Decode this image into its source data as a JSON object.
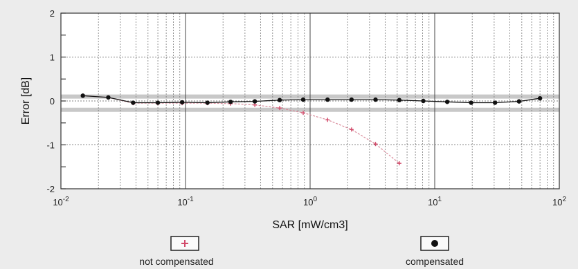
{
  "chart_data": {
    "type": "scatter",
    "title": "",
    "xlabel": "SAR [mW/cm3]",
    "ylabel": "Error [dB]",
    "xscale": "log",
    "xlim": [
      0.01,
      100
    ],
    "ylim": [
      -2,
      2
    ],
    "grid": true,
    "legend_position": "bottom",
    "x_ticks": [
      {
        "base": "10",
        "exp": "-2"
      },
      {
        "base": "10",
        "exp": "-1"
      },
      {
        "base": "10",
        "exp": "0"
      },
      {
        "base": "10",
        "exp": "1"
      },
      {
        "base": "10",
        "exp": "2"
      }
    ],
    "y_ticks": [
      "2",
      "1",
      "0",
      "-1",
      "-2"
    ],
    "band": {
      "upper": 0.1,
      "lower": -0.2
    },
    "series": [
      {
        "name": "not compensated",
        "color": "#d98a9a",
        "marker": "plus",
        "points": [
          [
            0.015,
            0.12
          ],
          [
            0.024,
            0.08
          ],
          [
            0.038,
            -0.05
          ],
          [
            0.06,
            -0.05
          ],
          [
            0.094,
            -0.05
          ],
          [
            0.15,
            -0.05
          ],
          [
            0.23,
            -0.06
          ],
          [
            0.36,
            -0.09
          ],
          [
            0.57,
            -0.16
          ],
          [
            0.88,
            -0.27
          ],
          [
            1.38,
            -0.43
          ],
          [
            2.15,
            -0.65
          ],
          [
            3.35,
            -0.98
          ],
          [
            5.2,
            -1.42
          ]
        ]
      },
      {
        "name": "compensated",
        "color": "#111111",
        "marker": "dot",
        "points": [
          [
            0.015,
            0.12
          ],
          [
            0.024,
            0.08
          ],
          [
            0.038,
            -0.04
          ],
          [
            0.06,
            -0.04
          ],
          [
            0.094,
            -0.03
          ],
          [
            0.15,
            -0.04
          ],
          [
            0.23,
            -0.02
          ],
          [
            0.36,
            -0.01
          ],
          [
            0.57,
            0.02
          ],
          [
            0.88,
            0.03
          ],
          [
            1.38,
            0.03
          ],
          [
            2.15,
            0.03
          ],
          [
            3.35,
            0.03
          ],
          [
            5.2,
            0.02
          ],
          [
            8.1,
            0.0
          ],
          [
            12.6,
            -0.02
          ],
          [
            19.6,
            -0.04
          ],
          [
            30.5,
            -0.04
          ],
          [
            47.5,
            -0.01
          ],
          [
            70,
            0.06
          ]
        ]
      }
    ]
  }
}
